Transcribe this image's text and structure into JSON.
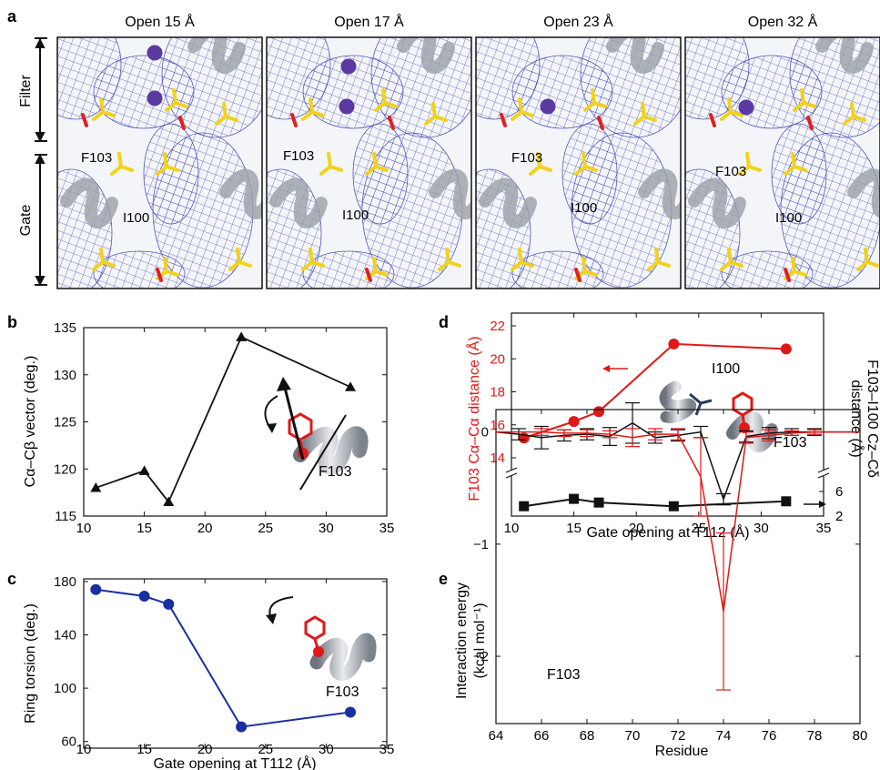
{
  "panel_a": {
    "letter": "a",
    "titles": [
      "Open 15 Å",
      "Open 17 Å",
      "Open 23 Å",
      "Open 32 Å"
    ],
    "region_filter": "Filter",
    "region_gate": "Gate",
    "residue_f": "F103",
    "residue_i": "I100",
    "colors": {
      "mesh": "#3a3fb0",
      "sidechain": "#f2d21a",
      "oxygen": "#e02020",
      "ion": "#5a3aa0",
      "backbone": "#9aa0a8"
    }
  },
  "chart_data": [
    {
      "panel": "b",
      "type": "line",
      "ylabel": "Cα–Cβ vector (deg.)",
      "xlim": [
        10,
        35
      ],
      "ylim": [
        115,
        135
      ],
      "xticks": [
        10,
        15,
        20,
        25,
        30,
        35
      ],
      "yticks": [
        115,
        120,
        125,
        130,
        135
      ],
      "x": [
        11,
        15,
        17,
        23,
        32
      ],
      "y": [
        118,
        119.8,
        116.5,
        134,
        128.7
      ],
      "marker": "triangle",
      "color": "#111111",
      "inset_label": "F103"
    },
    {
      "panel": "c",
      "type": "line",
      "ylabel": "Ring torsion (deg.)",
      "xlabel": "Gate opening at T112 (Å)",
      "xlim": [
        10,
        35
      ],
      "ylim": [
        55,
        182
      ],
      "xticks": [
        10,
        15,
        20,
        25,
        30,
        35
      ],
      "yticks": [
        60,
        100,
        140,
        180
      ],
      "x": [
        11,
        15,
        17,
        23,
        32
      ],
      "y": [
        174,
        169,
        163,
        71,
        82
      ],
      "marker": "circle",
      "color": "#1a2fa0",
      "inset_label": "F103"
    },
    {
      "panel": "d",
      "type": "line",
      "ylabel_left": "F103 Cα–Cα distance (Å)",
      "ylabel_right_line1": "F103–I100 Cz–Cδ",
      "ylabel_right_line2": "distance (Å)",
      "xlabel": "Gate opening at T112 (Å)",
      "xlim": [
        10,
        35
      ],
      "xticks": [
        10,
        15,
        20,
        25,
        30,
        35
      ],
      "ylim_left": [
        14,
        22
      ],
      "yticks_left": [
        14,
        16,
        18,
        20,
        22
      ],
      "yticks_right": [
        2,
        6
      ],
      "series": [
        {
          "axis": "left",
          "color": "#e01818",
          "marker": "circle",
          "x": [
            11,
            15,
            17,
            23,
            32
          ],
          "y": [
            15.2,
            16.2,
            16.8,
            20.9,
            20.6
          ]
        },
        {
          "axis": "right",
          "color": "#111111",
          "marker": "square",
          "x": [
            11,
            15,
            17,
            23,
            32
          ],
          "y": [
            3.6,
            4.8,
            4.2,
            3.6,
            4.4
          ]
        }
      ],
      "inset_labels": [
        "I100",
        "F103"
      ]
    },
    {
      "panel": "e",
      "type": "line",
      "ylabel_line1": "Interaction energy",
      "ylabel_line2": "(kcal mol⁻¹)",
      "xlabel": "Residue",
      "xlim": [
        64,
        80
      ],
      "ylim": [
        -2.6,
        0.2
      ],
      "xticks": [
        64,
        66,
        68,
        70,
        72,
        74,
        76,
        78,
        80
      ],
      "yticks": [
        0,
        -1,
        -2
      ],
      "annotation": "F103",
      "series": [
        {
          "color": "#111111",
          "x": [
            64,
            65,
            66,
            67,
            68,
            69,
            70,
            71,
            72,
            73,
            74,
            75,
            76,
            77,
            78,
            79,
            80
          ],
          "y": [
            0,
            -0.02,
            -0.05,
            -0.03,
            -0.02,
            -0.04,
            0.08,
            -0.05,
            -0.03,
            0,
            -0.6,
            -0.04,
            -0.01,
            0,
            0,
            0,
            0
          ],
          "err": [
            0,
            0.05,
            0.1,
            0.05,
            0.05,
            0.08,
            0.18,
            0.05,
            0.05,
            0.05,
            0.05,
            0.05,
            0.05,
            0.03,
            0.03,
            0,
            0
          ]
        },
        {
          "color": "#e01818",
          "x": [
            64,
            65,
            66,
            67,
            68,
            69,
            70,
            71,
            72,
            73,
            74,
            75,
            76,
            77,
            78,
            79,
            80
          ],
          "y": [
            0,
            0,
            0,
            -0.01,
            -0.01,
            -0.02,
            -0.05,
            -0.02,
            -0.02,
            -0.4,
            -1.6,
            -0.05,
            -0.03,
            -0.01,
            0,
            0,
            0
          ],
          "err": [
            0,
            0,
            0.03,
            0.03,
            0.03,
            0.03,
            0.08,
            0.05,
            0.05,
            0.35,
            0.7,
            0.05,
            0.05,
            0.02,
            0.02,
            0,
            0
          ]
        }
      ]
    }
  ],
  "letters": {
    "b": "b",
    "c": "c",
    "d": "d",
    "e": "e"
  }
}
